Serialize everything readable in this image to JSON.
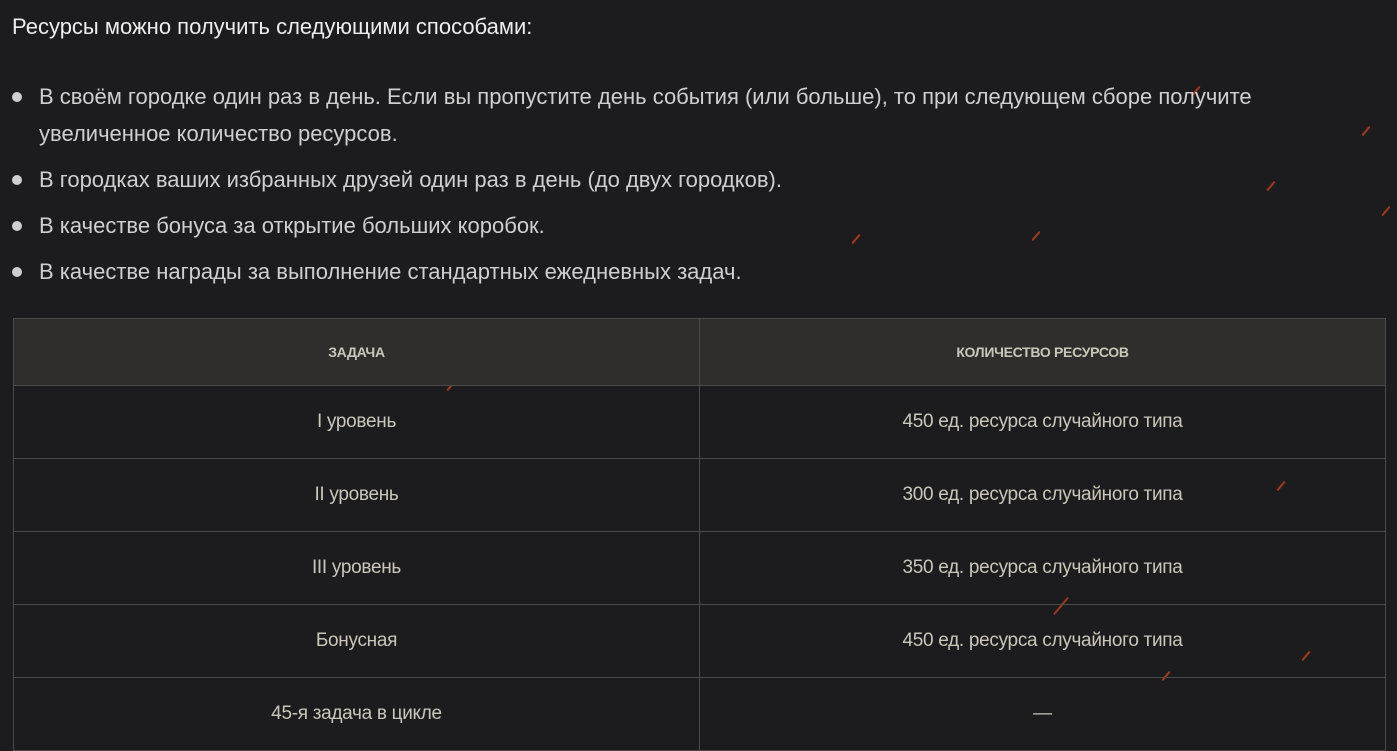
{
  "title": "Ресурсы можно получить следующими способами:",
  "bullets": [
    "В своём городке один раз в день. Если вы пропустите день события (или больше), то при следующем сборе получите увеличенное количество ресурсов.",
    "В городках ваших избранных друзей один раз в день (до двух городков).",
    "В качестве бонуса за открытие больших коробок.",
    "В качестве награды за выполнение стандартных ежедневных задач."
  ],
  "table": {
    "headers": [
      "ЗАДАЧА",
      "КОЛИЧЕСТВО РЕСУРСОВ"
    ],
    "rows": [
      [
        "I уровень",
        "450 ед. ресурса случайного типа"
      ],
      [
        "II уровень",
        "300 ед. ресурса случайного типа"
      ],
      [
        "III уровень",
        "350 ед. ресурса случайного типа"
      ],
      [
        "Бонусная",
        "450 ед. ресурса случайного типа"
      ],
      [
        "45-я задача в цикле",
        "—"
      ]
    ]
  },
  "colors": {
    "background": "#1c1c1e",
    "header_bg": "#2f2e2c",
    "text": "#c9c7ba",
    "spark": "#d8461c"
  }
}
